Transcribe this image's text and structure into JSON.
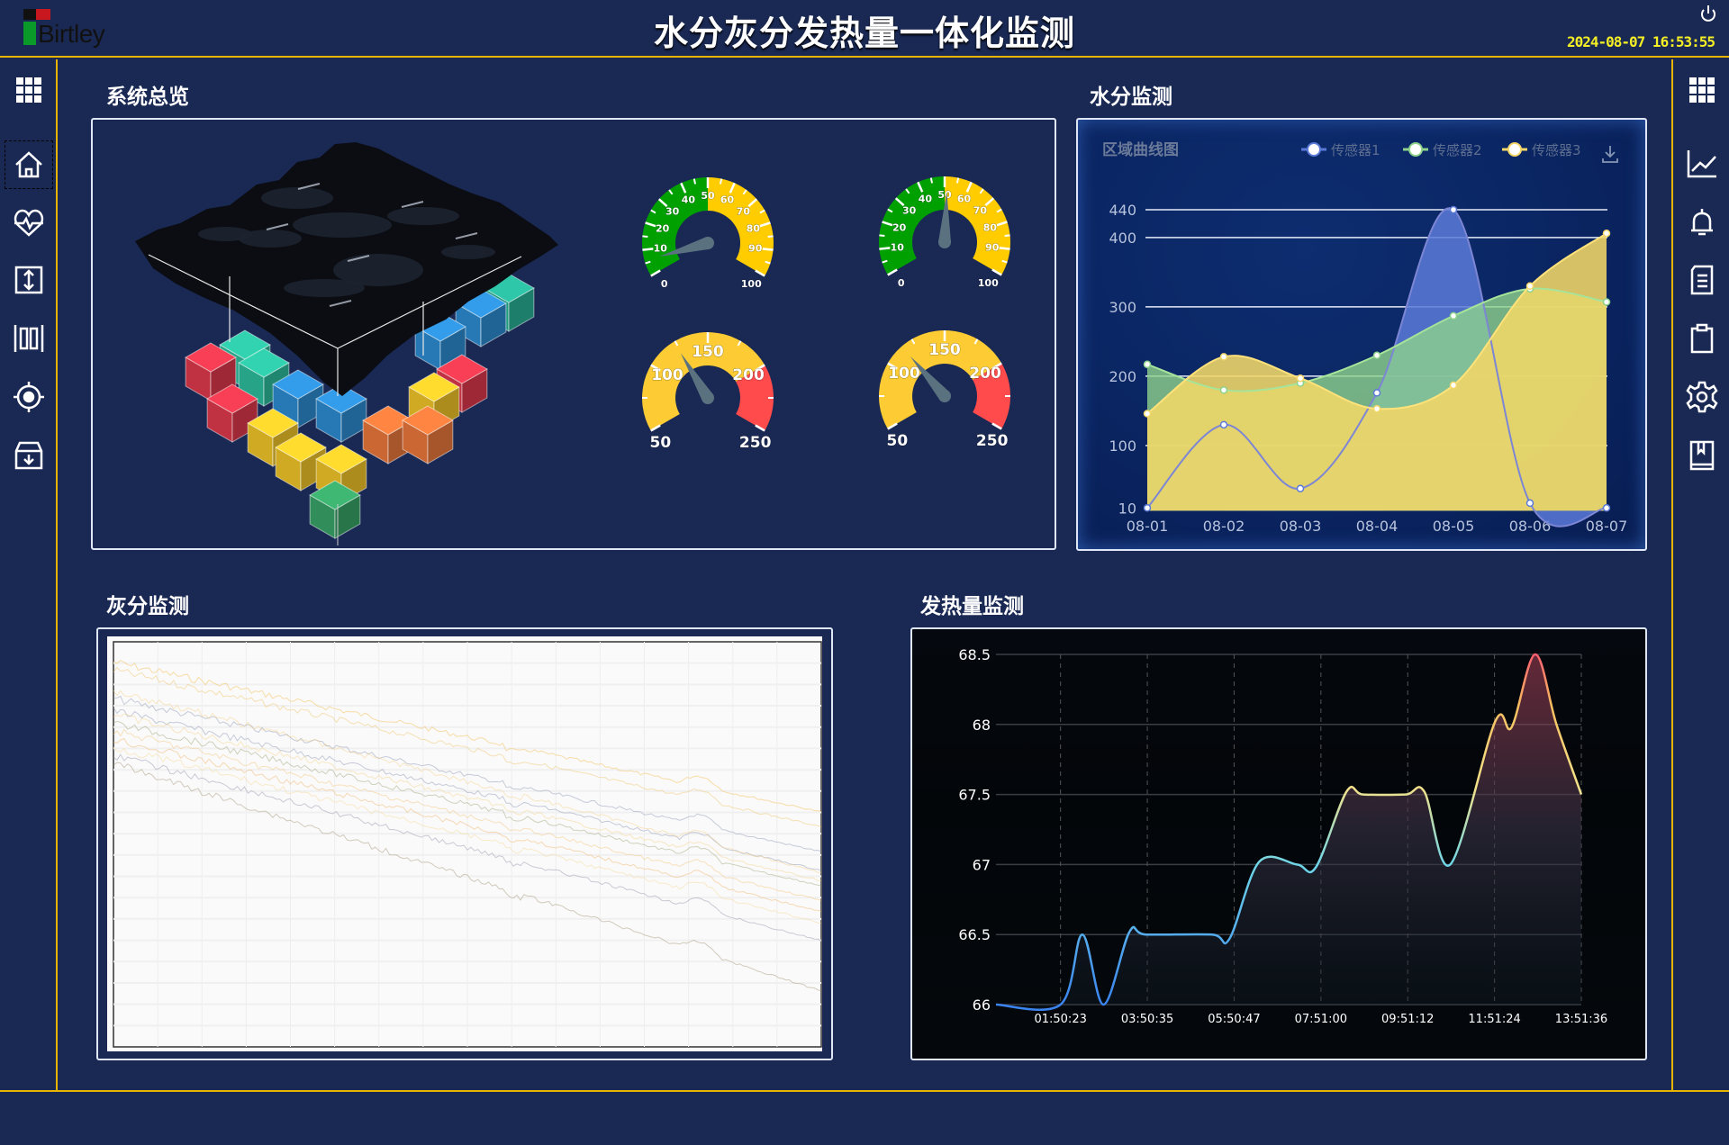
{
  "header": {
    "logo_text": "Birtley",
    "title": "水分灰分发热量一体化监测",
    "datetime": "2024-08-07  16:53:55",
    "power_icon": "power-icon"
  },
  "left_sidebar": {
    "items": [
      {
        "icon": "apps-grid-icon"
      },
      {
        "icon": "home-icon",
        "selected": true
      },
      {
        "icon": "heart-pulse-icon"
      },
      {
        "icon": "vertical-resize-icon"
      },
      {
        "icon": "barcode-icon"
      },
      {
        "icon": "target-icon"
      },
      {
        "icon": "archive-download-icon"
      }
    ]
  },
  "right_sidebar": {
    "items": [
      {
        "icon": "apps-grid-icon"
      },
      {
        "icon": "line-chart-icon"
      },
      {
        "icon": "bell-icon"
      },
      {
        "icon": "document-icon"
      },
      {
        "icon": "clipboard-icon"
      },
      {
        "icon": "settings-gear-icon"
      },
      {
        "icon": "book-icon"
      }
    ]
  },
  "sections": {
    "overview": "系统总览",
    "moisture": "水分监测",
    "ash": "灰分监测",
    "heat": "发热量监测"
  },
  "gauges": [
    {
      "min": 0,
      "max": 100,
      "value": 6,
      "labels": [
        "0",
        "10",
        "20",
        "30",
        "40",
        "50",
        "60",
        "70",
        "80",
        "90",
        "100"
      ],
      "bands": [
        {
          "to": 50,
          "color": "#00a000"
        },
        {
          "to": 100,
          "color": "#ffcc00"
        }
      ]
    },
    {
      "min": 0,
      "max": 100,
      "value": 51,
      "labels": [
        "0",
        "10",
        "20",
        "30",
        "40",
        "50",
        "60",
        "70",
        "80",
        "90",
        "100"
      ],
      "bands": [
        {
          "to": 50,
          "color": "#00a000"
        },
        {
          "to": 100,
          "color": "#ffcc00"
        }
      ]
    },
    {
      "min": 50,
      "max": 250,
      "value": 124,
      "labels": [
        "50",
        "100",
        "150",
        "200",
        "250"
      ],
      "bands": [
        {
          "to": 200,
          "color": "#fdcb34"
        },
        {
          "to": 250,
          "color": "#ff4b4b"
        }
      ]
    },
    {
      "min": 50,
      "max": 250,
      "value": 116,
      "labels": [
        "50",
        "100",
        "150",
        "200",
        "250"
      ],
      "bands": [
        {
          "to": 200,
          "color": "#fdcb34"
        },
        {
          "to": 250,
          "color": "#ff4b4b"
        }
      ]
    }
  ],
  "chart_data": [
    {
      "type": "area",
      "title": "区域曲线图",
      "categories": [
        "08-01",
        "08-02",
        "08-03",
        "08-04",
        "08-05",
        "08-06",
        "08-07"
      ],
      "yticks": [
        10,
        100,
        200,
        300,
        400,
        440
      ],
      "ylim": [
        0,
        440
      ],
      "grid": true,
      "legend": "top-right",
      "download_icon": "download-icon",
      "series": [
        {
          "name": "传感器1",
          "color": "#5b7ad8",
          "values": [
            10,
            130,
            38,
            176,
            440,
            17,
            10
          ]
        },
        {
          "name": "传感器2",
          "color": "#8ed38c",
          "values": [
            217,
            180,
            190,
            230,
            287,
            326,
            307
          ]
        },
        {
          "name": "传感器3",
          "color": "#f3d768",
          "values": [
            146,
            228,
            197,
            153,
            187,
            330,
            406
          ]
        }
      ]
    },
    {
      "type": "line",
      "xticks": [
        "01:50:23",
        "03:50:35",
        "05:50:47",
        "07:51:00",
        "09:51:12",
        "11:51:24",
        "13:51:36"
      ],
      "yticks": [
        66,
        66.5,
        67,
        67.5,
        68,
        68.5
      ],
      "ylim": [
        66,
        68.5
      ],
      "grid": true,
      "points": [
        [
          "00:21:00",
          66.0
        ],
        [
          "01:50:23",
          66.0
        ],
        [
          "02:20:34",
          66.5
        ],
        [
          "02:49:58",
          66.0
        ],
        [
          "03:25:54",
          66.52
        ],
        [
          "03:48:46",
          66.5
        ],
        [
          "05:20:14",
          66.5
        ],
        [
          "05:44:24",
          66.47
        ],
        [
          "06:25:34",
          67.02
        ],
        [
          "07:17:50",
          67.0
        ],
        [
          "07:43:58",
          66.98
        ],
        [
          "08:26:26",
          67.52
        ],
        [
          "08:49:18",
          67.5
        ],
        [
          "09:48:06",
          67.5
        ],
        [
          "10:14:14",
          67.52
        ],
        [
          "10:50:10",
          67.0
        ],
        [
          "11:52:14",
          68.02
        ],
        [
          "12:15:06",
          67.98
        ],
        [
          "12:47:46",
          68.5
        ],
        [
          "13:17:10",
          68.0
        ],
        [
          "13:51:36",
          67.5
        ]
      ]
    }
  ]
}
